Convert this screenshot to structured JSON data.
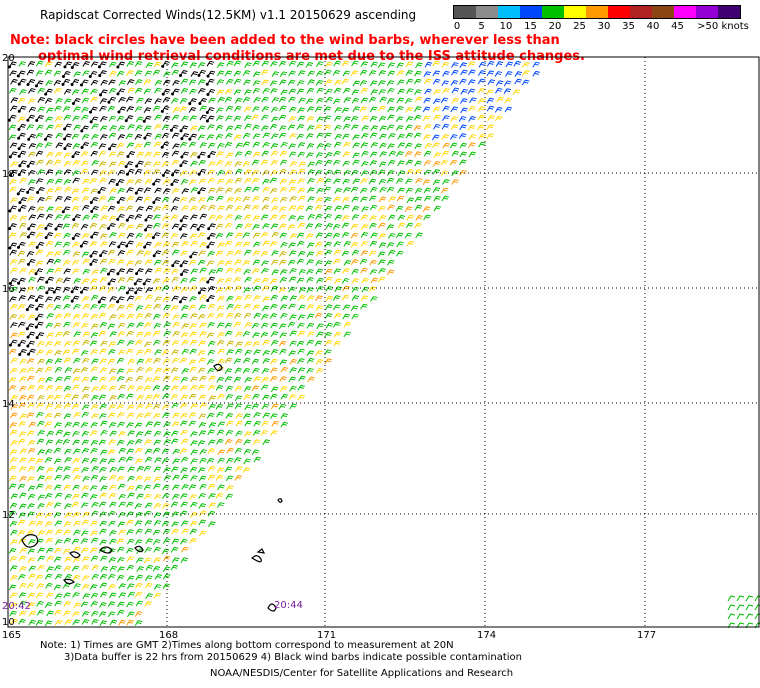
{
  "title": "Rapidscat Corrected Winds(12.5KM) v1.1 20150629 ascending",
  "note": {
    "line1": "Note: black circles have been added to the wind barbs, wherever less than",
    "line2": "optimal wind retrieval conditions are met due to the ISS attitude changes."
  },
  "legend": {
    "colors": [
      "#555555",
      "#8c8c8c",
      "#00bfff",
      "#0047ff",
      "#00c000",
      "#ffff00",
      "#ff9900",
      "#ff0000",
      "#b22222",
      "#8b4513",
      "#ff00ff",
      "#9400d3",
      "#3f0071"
    ],
    "ticks": [
      "0",
      "5",
      "10",
      "15",
      "20",
      "25",
      "30",
      "35",
      "40",
      "45",
      ">50 knots"
    ]
  },
  "axes": {
    "lat_labels": [
      "20",
      "18",
      "16",
      "14",
      "12",
      "10"
    ],
    "lon_labels": [
      "165",
      "168",
      "171",
      "174",
      "177"
    ]
  },
  "times": [
    "20:42",
    "20:44"
  ],
  "footer": {
    "line1": "Note: 1) Times are GMT 2)Times along bottom correspond to measurement at 20N",
    "line2": "3)Data buffer is 22 hrs from 20150629 4) Black wind barbs indicate possible contamination",
    "credit": "NOAA/NESDIS/Center for Satellite Applications and Research"
  }
}
